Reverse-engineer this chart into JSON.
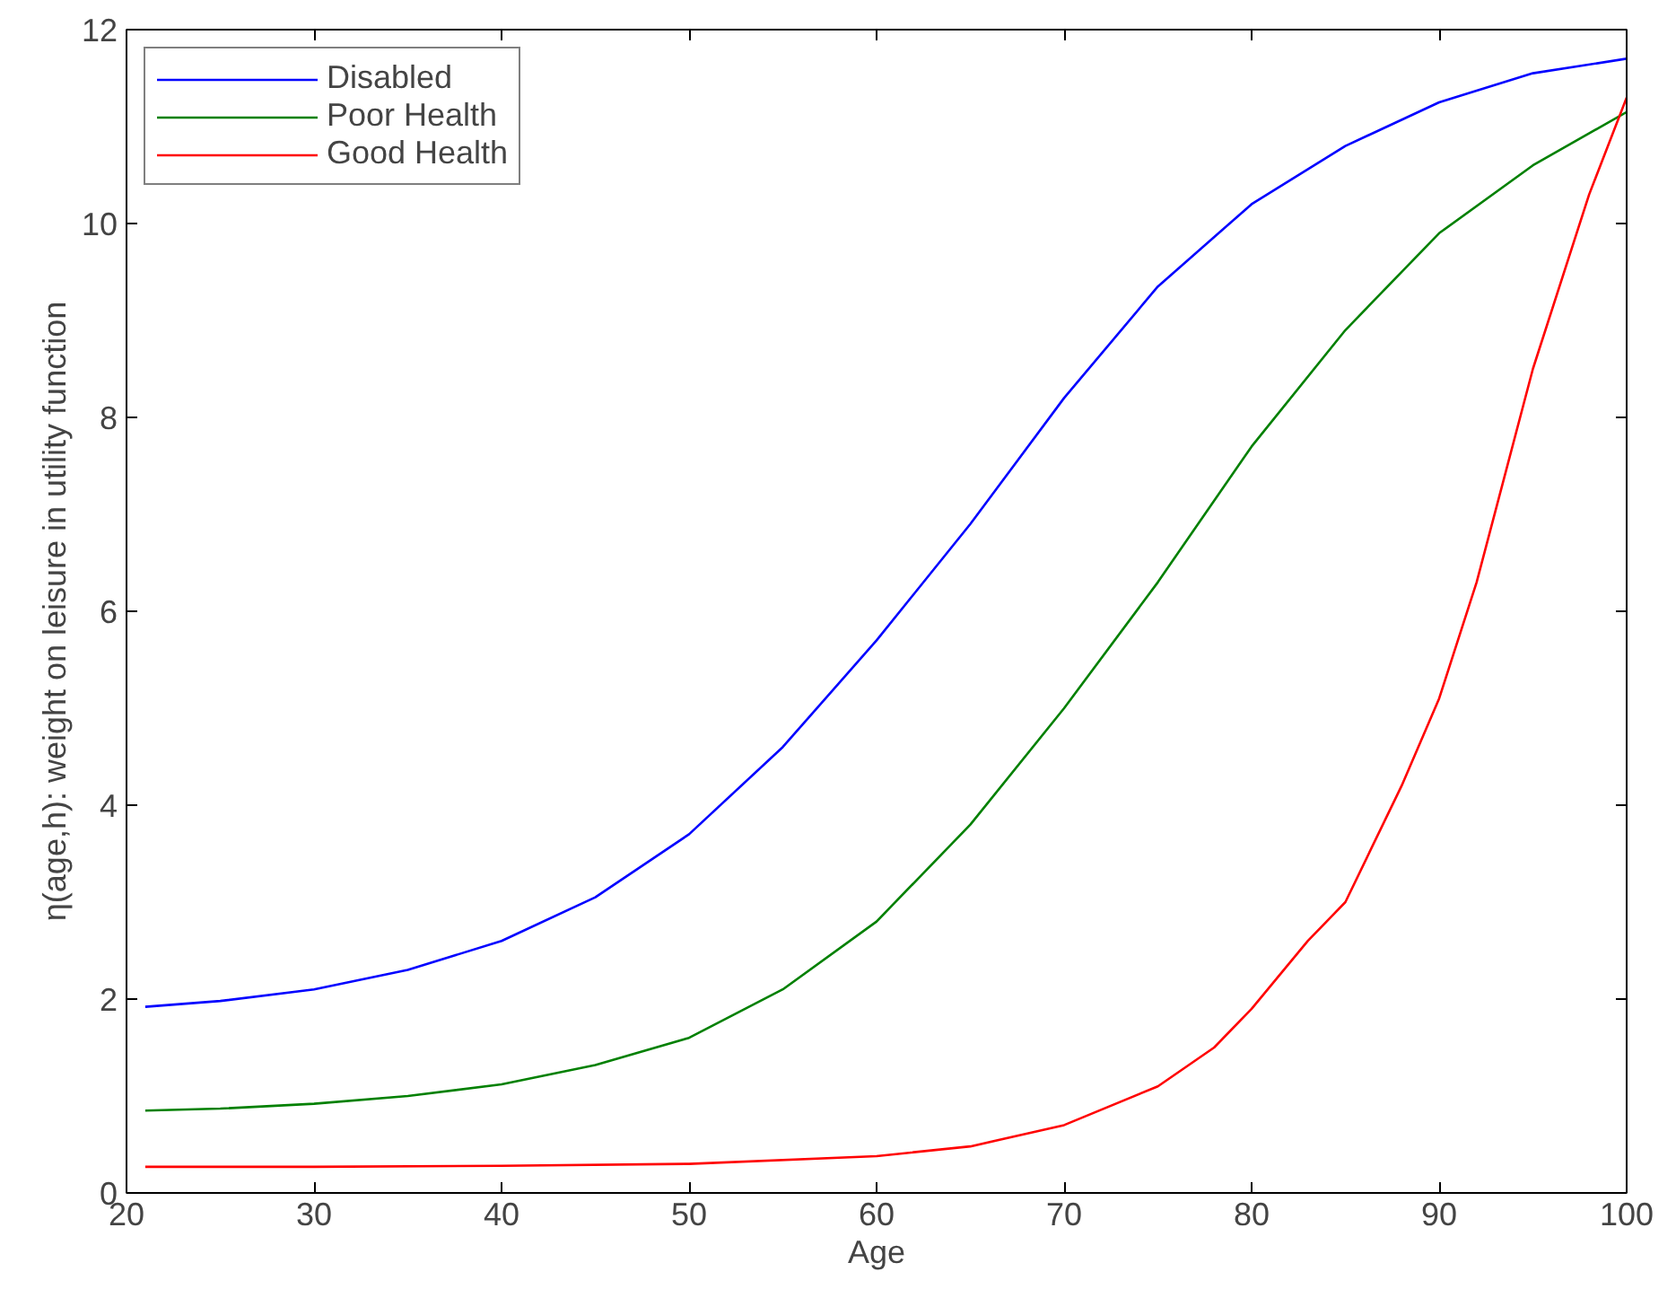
{
  "chart_data": {
    "type": "line",
    "xlabel": "Age",
    "ylabel": "η(age,h): weight on leisure in utility function",
    "xlim": [
      20,
      100
    ],
    "ylim": [
      0,
      12
    ],
    "xticks": [
      20,
      30,
      40,
      50,
      60,
      70,
      80,
      90,
      100
    ],
    "yticks": [
      0,
      2,
      4,
      6,
      8,
      10,
      12
    ],
    "grid": false,
    "legend": "top left",
    "line_style": "solid",
    "series": [
      {
        "name": "Disabled",
        "color": "#0000ff",
        "x": [
          21,
          25,
          30,
          35,
          40,
          45,
          50,
          55,
          60,
          65,
          70,
          75,
          80,
          85,
          90,
          95,
          100
        ],
        "values": [
          1.92,
          1.98,
          2.1,
          2.3,
          2.6,
          3.05,
          3.7,
          4.6,
          5.7,
          6.9,
          8.2,
          9.35,
          10.2,
          10.8,
          11.25,
          11.55,
          11.7
        ]
      },
      {
        "name": "Poor Health",
        "color": "#008000",
        "x": [
          21,
          25,
          30,
          35,
          40,
          45,
          50,
          55,
          60,
          65,
          70,
          75,
          80,
          85,
          90,
          95,
          100
        ],
        "values": [
          0.85,
          0.87,
          0.92,
          1.0,
          1.12,
          1.32,
          1.6,
          2.1,
          2.8,
          3.8,
          5.0,
          6.3,
          7.7,
          8.9,
          9.9,
          10.6,
          11.15
        ]
      },
      {
        "name": "Good Health",
        "color": "#ff0000",
        "x": [
          21,
          30,
          40,
          50,
          60,
          65,
          70,
          75,
          78,
          80,
          83,
          85,
          88,
          90,
          92,
          95,
          98,
          100
        ],
        "values": [
          0.27,
          0.27,
          0.28,
          0.3,
          0.38,
          0.48,
          0.7,
          1.1,
          1.5,
          1.9,
          2.6,
          3.0,
          4.2,
          5.1,
          6.3,
          8.5,
          10.3,
          11.3
        ]
      }
    ]
  }
}
